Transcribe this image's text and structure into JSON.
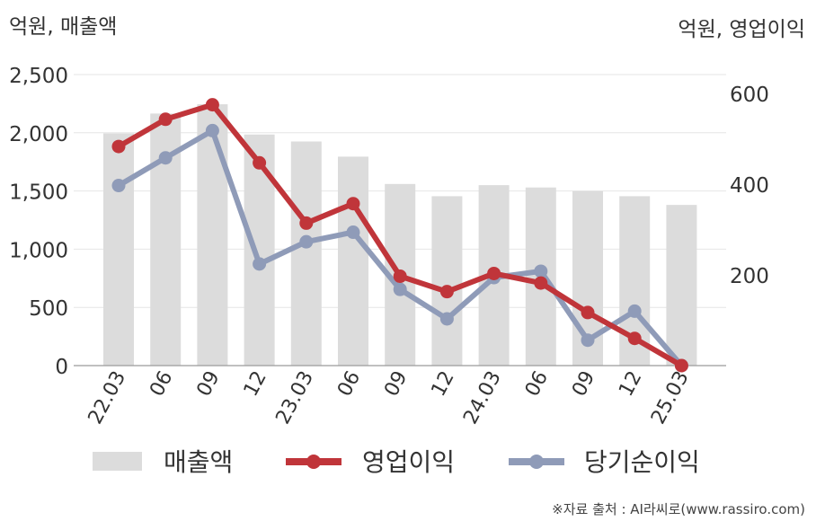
{
  "chart_data": {
    "type": "bar+line",
    "left_axis_label": "억원, 매출액",
    "right_axis_label": "억원, 영업이익",
    "categories": [
      "22.03",
      "06",
      "09",
      "12",
      "23.03",
      "06",
      "09",
      "12",
      "24.03",
      "06",
      "09",
      "12",
      "25.03"
    ],
    "left_ylim": [
      0,
      2500
    ],
    "left_ticks": [
      "0",
      "500",
      "1,000",
      "1,500",
      "2,000",
      "2,500"
    ],
    "right_ylim": [
      0,
      600
    ],
    "right_ticks": [
      "200",
      "400",
      "600"
    ],
    "grid": true,
    "legend_position": "bottom",
    "series": [
      {
        "name": "매출액",
        "type": "bar",
        "axis": "left",
        "color": "#dcdcdc",
        "values": [
          1995,
          2165,
          2245,
          1985,
          1925,
          1795,
          1560,
          1455,
          1550,
          1530,
          1500,
          1455,
          1380
        ]
      },
      {
        "name": "영업이익",
        "type": "line",
        "axis": "right",
        "color": "#c0353a",
        "values": [
          483,
          543,
          575,
          447,
          314,
          357,
          197,
          163,
          203,
          182,
          117,
          60,
          0
        ]
      },
      {
        "name": "당기순이익",
        "type": "line",
        "axis": "right",
        "color": "#8f9bb8",
        "values": [
          397,
          458,
          518,
          224,
          273,
          294,
          168,
          103,
          194,
          208,
          56,
          120,
          0
        ]
      }
    ]
  },
  "source": "※자료 출처 : AI라씨로(www.rassiro.com)"
}
